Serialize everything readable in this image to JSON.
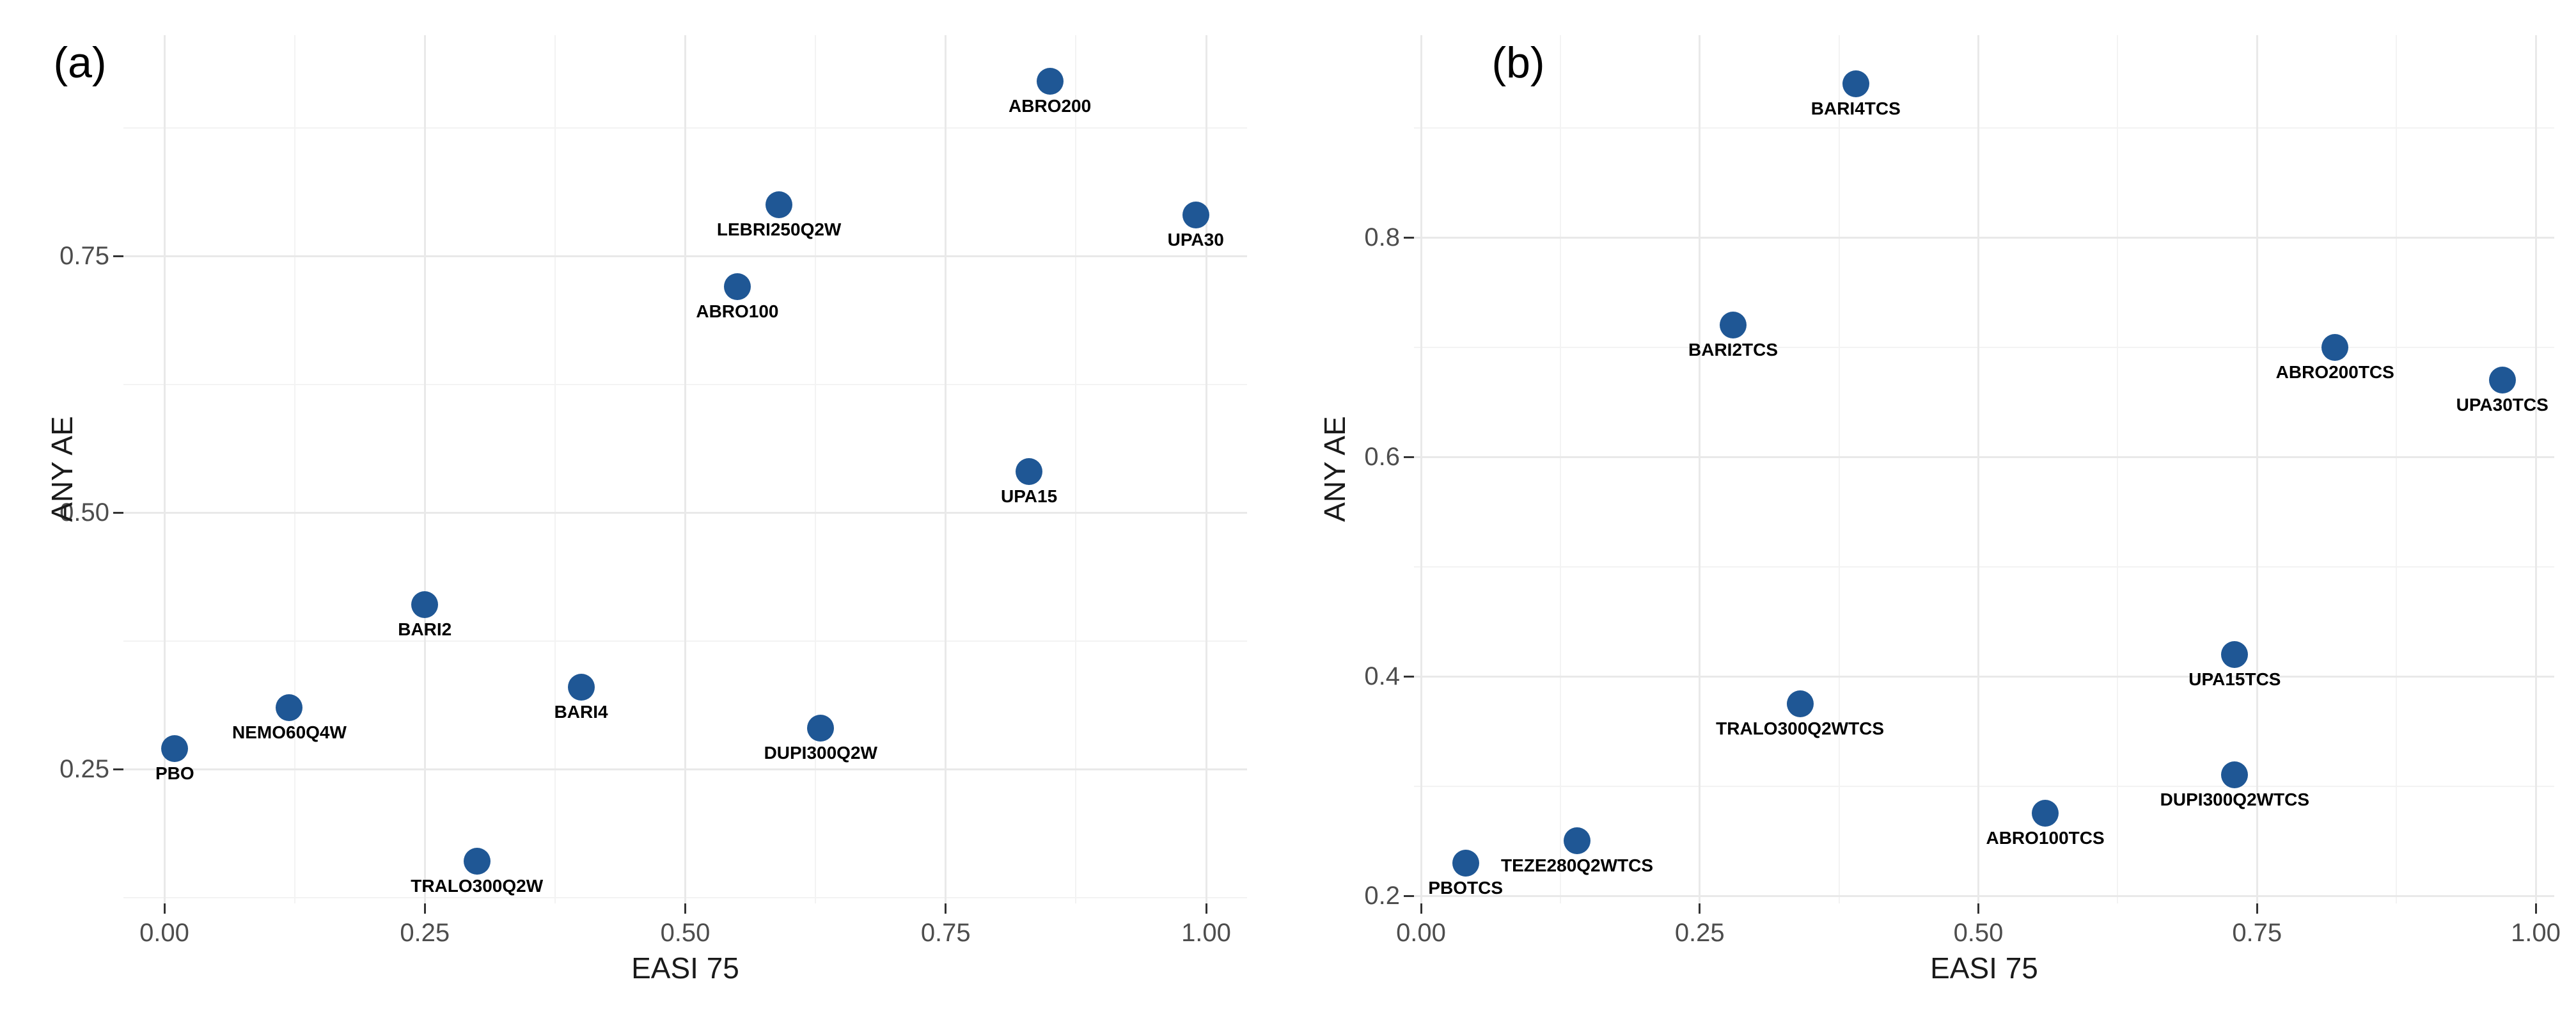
{
  "colors": {
    "background": "#FFFFFF",
    "point_fill": "#1F5795",
    "grid_major": "#E9E9E9",
    "grid_minor": "#F3F3F3",
    "tick_mark": "#333333",
    "tick_label": "#4D4D4D",
    "axis_title": "#1A1A1A",
    "point_label": "#000000"
  },
  "chart_data": [
    {
      "type": "scatter",
      "panel_tag": "(a)",
      "xlabel": "EASI 75",
      "ylabel": "ANY AE",
      "x_tick_values": [
        0.0,
        0.25,
        0.5,
        0.75,
        1.0
      ],
      "x_tick_labels": [
        "0.00",
        "0.25",
        "0.50",
        "0.75",
        "1.00"
      ],
      "y_tick_values": [
        0.25,
        0.5,
        0.75
      ],
      "y_tick_labels": [
        "0.25",
        "0.50",
        "0.75"
      ],
      "xlim": [
        -0.04,
        1.04
      ],
      "ylim": [
        0.12,
        0.965
      ],
      "grid": "major+minor",
      "legend": "none",
      "point_color": "#1F5795",
      "points": [
        {
          "label": "PBO",
          "x": 0.01,
          "y": 0.27
        },
        {
          "label": "NEMO60Q4W",
          "x": 0.12,
          "y": 0.31
        },
        {
          "label": "BARI2",
          "x": 0.25,
          "y": 0.41
        },
        {
          "label": "TRALO300Q2W",
          "x": 0.3,
          "y": 0.16
        },
        {
          "label": "BARI4",
          "x": 0.4,
          "y": 0.33
        },
        {
          "label": "ABRO100",
          "x": 0.55,
          "y": 0.72
        },
        {
          "label": "LEBRI250Q2W",
          "x": 0.59,
          "y": 0.8
        },
        {
          "label": "DUPI300Q2W",
          "x": 0.63,
          "y": 0.29
        },
        {
          "label": "UPA15",
          "x": 0.83,
          "y": 0.54
        },
        {
          "label": "ABRO200",
          "x": 0.85,
          "y": 0.92
        },
        {
          "label": "UPA30",
          "x": 0.99,
          "y": 0.79
        }
      ]
    },
    {
      "type": "scatter",
      "panel_tag": "(b)",
      "xlabel": "EASI 75",
      "ylabel": "ANY AE",
      "x_tick_values": [
        0.0,
        0.25,
        0.5,
        0.75,
        1.0
      ],
      "x_tick_labels": [
        "0.00",
        "0.25",
        "0.50",
        "0.75",
        "1.00"
      ],
      "y_tick_values": [
        0.2,
        0.4,
        0.6,
        0.8
      ],
      "y_tick_labels": [
        "0.2",
        "0.4",
        "0.6",
        "0.8"
      ],
      "xlim": [
        -0.006,
        1.017
      ],
      "ylim": [
        0.195,
        0.985
      ],
      "grid": "major+minor",
      "legend": "none",
      "point_color": "#1F5795",
      "points": [
        {
          "label": "PBOTCS",
          "x": 0.04,
          "y": 0.23
        },
        {
          "label": "TEZE280Q2WTCS",
          "x": 0.14,
          "y": 0.25
        },
        {
          "label": "BARI2TCS",
          "x": 0.28,
          "y": 0.72
        },
        {
          "label": "TRALO300Q2WTCS",
          "x": 0.34,
          "y": 0.375
        },
        {
          "label": "BARI4TCS",
          "x": 0.39,
          "y": 0.94
        },
        {
          "label": "ABRO100TCS",
          "x": 0.56,
          "y": 0.275
        },
        {
          "label": "UPA15TCS",
          "x": 0.73,
          "y": 0.42
        },
        {
          "label": "DUPI300Q2WTCS",
          "x": 0.73,
          "y": 0.31
        },
        {
          "label": "ABRO200TCS",
          "x": 0.82,
          "y": 0.7
        },
        {
          "label": "UPA30TCS",
          "x": 0.97,
          "y": 0.67
        }
      ]
    }
  ]
}
